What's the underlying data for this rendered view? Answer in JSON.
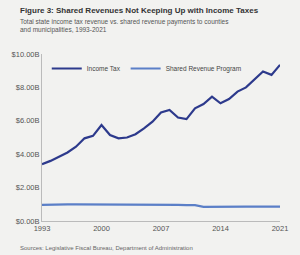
{
  "chart_data": {
    "type": "line",
    "title": "Figure 3: Shared Revenues Not Keeping Up with Income Taxes",
    "subtitle": "Total state income tax revenue vs. shared revenue payments to counties and municipalities, 1993-2021",
    "source": "Sources: Legislative Fiscal Bureau, Department of Administration",
    "x": [
      1993,
      1994,
      1995,
      1996,
      1997,
      1998,
      1999,
      2000,
      2001,
      2002,
      2003,
      2004,
      2005,
      2006,
      2007,
      2008,
      2009,
      2010,
      2011,
      2012,
      2013,
      2014,
      2015,
      2016,
      2017,
      2018,
      2019,
      2020,
      2021
    ],
    "series": [
      {
        "name": "Income Tax",
        "color": "#2d3a8c",
        "values": [
          3.4,
          3.6,
          3.85,
          4.1,
          4.45,
          4.95,
          5.1,
          5.75,
          5.15,
          4.95,
          5.0,
          5.2,
          5.55,
          5.95,
          6.5,
          6.65,
          6.2,
          6.1,
          6.75,
          7.0,
          7.45,
          7.05,
          7.3,
          7.75,
          8.0,
          8.5,
          8.95,
          8.75,
          9.35
        ]
      },
      {
        "name": "Shared Revenue Program",
        "color": "#5b7fc7",
        "values": [
          0.97,
          0.99,
          1.0,
          1.0,
          1.0,
          1.0,
          1.0,
          1.0,
          1.0,
          1.0,
          1.0,
          0.97,
          0.96,
          0.96,
          0.96,
          0.96,
          0.96,
          0.95,
          0.95,
          0.85,
          0.86,
          0.86,
          0.86,
          0.86,
          0.86,
          0.86,
          0.86,
          0.86,
          0.86
        ]
      }
    ],
    "xlim": [
      1993,
      2021
    ],
    "xticks": [
      1993,
      2000,
      2007,
      2014,
      2021
    ],
    "ylim": [
      0,
      10
    ],
    "yticks": [
      {
        "value": 0,
        "label": "$0.00B"
      },
      {
        "value": 2,
        "label": "$2.00B"
      },
      {
        "value": 4,
        "label": "$4.00B"
      },
      {
        "value": 6,
        "label": "$6.00B"
      },
      {
        "value": 8,
        "label": "$8.00B"
      },
      {
        "value": 10,
        "label": "$10.00B"
      }
    ],
    "grid": false,
    "legend": "upper left"
  }
}
